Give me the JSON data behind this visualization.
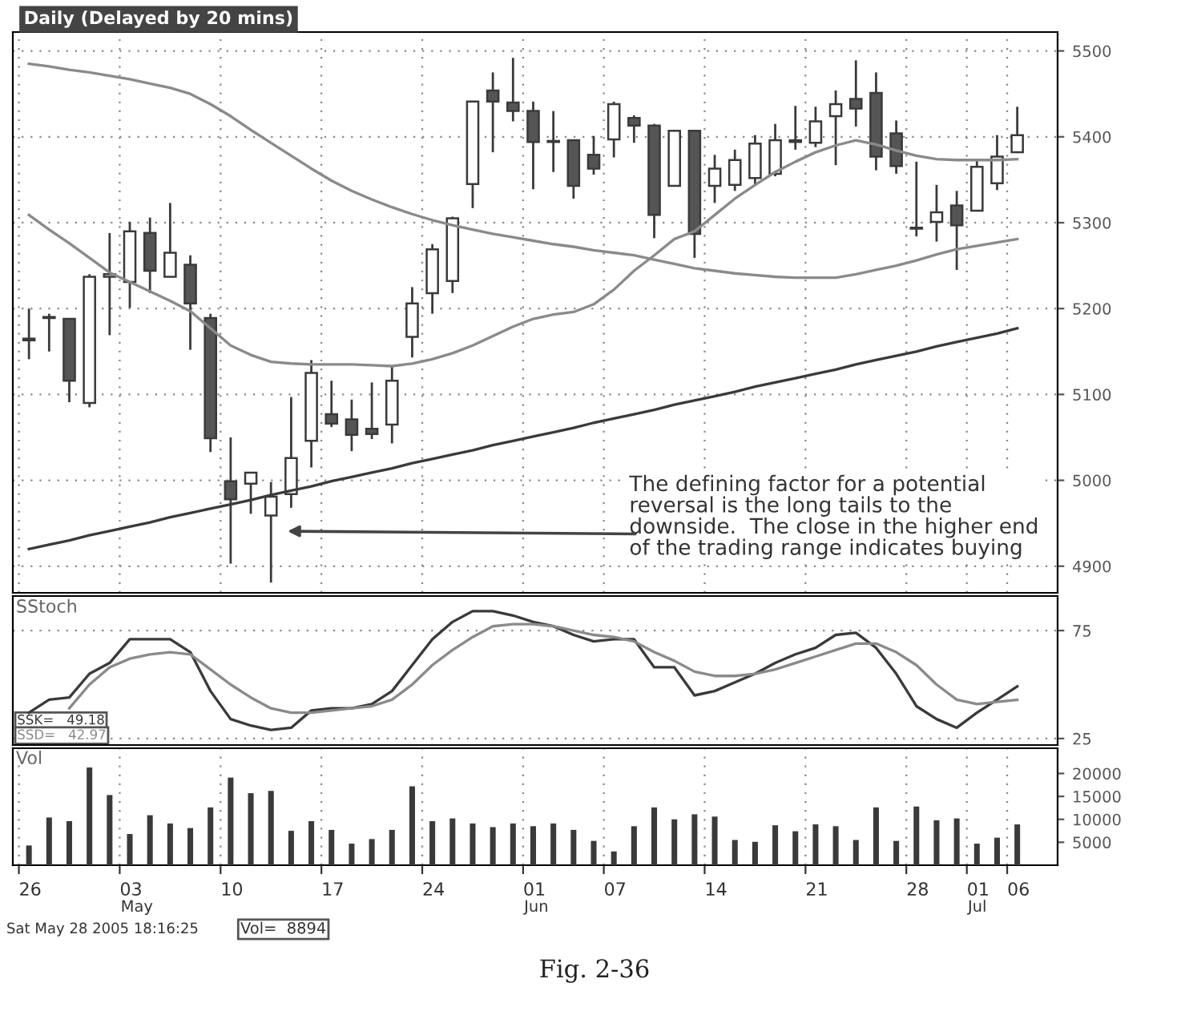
{
  "chart_data": [
    {
      "type": "candlestick",
      "title": "Daily (Delayed by 20 mins)",
      "categories": [
        "26",
        null,
        null,
        null,
        null,
        "03",
        null,
        null,
        null,
        null,
        "10",
        null,
        null,
        null,
        null,
        "17",
        null,
        null,
        null,
        null,
        "24",
        null,
        null,
        null,
        null,
        "01",
        null,
        null,
        null,
        "07",
        null,
        null,
        null,
        null,
        "14",
        null,
        null,
        null,
        null,
        "21",
        null,
        null,
        null,
        null,
        "28",
        null,
        null,
        "01",
        null,
        "06"
      ],
      "ohlc": [
        [
          5165,
          5200,
          5141,
          5163
        ],
        [
          5189,
          5194,
          5150,
          5190
        ],
        [
          5188,
          5188,
          5091,
          5116
        ],
        [
          5090,
          5240,
          5085,
          5237
        ],
        [
          5237,
          5288,
          5169,
          5240
        ],
        [
          5231,
          5301,
          5201,
          5290
        ],
        [
          5288,
          5306,
          5218,
          5244
        ],
        [
          5237,
          5323,
          5237,
          5265
        ],
        [
          5251,
          5262,
          5152,
          5206
        ],
        [
          5189,
          5194,
          5033,
          5049
        ],
        [
          4999,
          5050,
          4903,
          4978
        ],
        [
          4996,
          5009,
          4961,
          5009
        ],
        [
          4959,
          4998,
          4881,
          4981
        ],
        [
          4984,
          5097,
          4968,
          5026
        ],
        [
          5046,
          5140,
          5015,
          5125
        ],
        [
          5077,
          5116,
          5062,
          5066
        ],
        [
          5071,
          5094,
          5034,
          5053
        ],
        [
          5060,
          5114,
          5048,
          5054
        ],
        [
          5065,
          5132,
          5043,
          5116
        ],
        [
          5167,
          5225,
          5143,
          5206
        ],
        [
          5218,
          5275,
          5194,
          5269
        ],
        [
          5232,
          5307,
          5218,
          5305
        ],
        [
          5345,
          5441,
          5317,
          5441
        ],
        [
          5454,
          5475,
          5382,
          5441
        ],
        [
          5440,
          5492,
          5418,
          5430
        ],
        [
          5430,
          5441,
          5339,
          5394
        ],
        [
          5395,
          5430,
          5359,
          5394
        ],
        [
          5396,
          5396,
          5328,
          5343
        ],
        [
          5379,
          5401,
          5356,
          5363
        ],
        [
          5397,
          5441,
          5376,
          5438
        ],
        [
          5422,
          5425,
          5393,
          5413
        ],
        [
          5413,
          5415,
          5282,
          5309
        ],
        [
          5343,
          5407,
          5343,
          5407
        ],
        [
          5407,
          5407,
          5259,
          5287
        ],
        [
          5343,
          5379,
          5323,
          5363
        ],
        [
          5344,
          5385,
          5337,
          5373
        ],
        [
          5352,
          5402,
          5343,
          5392
        ],
        [
          5357,
          5415,
          5354,
          5396
        ],
        [
          5394,
          5436,
          5385,
          5396
        ],
        [
          5393,
          5435,
          5388,
          5418
        ],
        [
          5424,
          5454,
          5367,
          5438
        ],
        [
          5444,
          5489,
          5412,
          5433
        ],
        [
          5451,
          5475,
          5361,
          5377
        ],
        [
          5404,
          5419,
          5357,
          5366
        ],
        [
          5294,
          5371,
          5284,
          5293
        ],
        [
          5301,
          5344,
          5278,
          5312
        ],
        [
          5320,
          5337,
          5245,
          5297
        ],
        [
          5314,
          5374,
          5314,
          5365
        ],
        [
          5346,
          5402,
          5338,
          5377
        ],
        [
          5382,
          5435,
          5381,
          5402
        ]
      ],
      "series": [
        {
          "type": "line",
          "color": "#8a8a8a",
          "values": [
            5485,
            5482,
            5478,
            5475,
            5471,
            5467,
            5462,
            5457,
            5450,
            5438,
            5424,
            5408,
            5393,
            5378,
            5363,
            5349,
            5337,
            5327,
            5318,
            5310,
            5303,
            5297,
            5292,
            5287,
            5283,
            5279,
            5275,
            5272,
            5268,
            5265,
            5262,
            5257,
            5252,
            5247,
            5244,
            5241,
            5239,
            5237,
            5236,
            5236,
            5236,
            5240,
            5245,
            5250,
            5256,
            5263,
            5269,
            5273,
            5277,
            5281
          ]
        },
        {
          "type": "line",
          "color": "#8a8a8a",
          "values": [
            5309,
            5292,
            5276,
            5259,
            5242,
            5231,
            5220,
            5209,
            5197,
            5177,
            5157,
            5146,
            5138,
            5136,
            5135,
            5135,
            5135,
            5134,
            5133,
            5136,
            5141,
            5148,
            5157,
            5168,
            5179,
            5188,
            5193,
            5196,
            5205,
            5222,
            5244,
            5262,
            5281,
            5290,
            5309,
            5328,
            5344,
            5359,
            5371,
            5382,
            5390,
            5396,
            5391,
            5384,
            5378,
            5374,
            5373,
            5373,
            5373,
            5374
          ]
        },
        {
          "type": "line",
          "color": "#3a3a3a",
          "values": [
            4920,
            4925,
            4930,
            4936,
            4941,
            4946,
            4951,
            4957,
            4962,
            4967,
            4972,
            4977,
            4983,
            4988,
            4993,
            4999,
            5004,
            5009,
            5014,
            5020,
            5025,
            5030,
            5035,
            5041,
            5046,
            5051,
            5056,
            5061,
            5067,
            5072,
            5077,
            5082,
            5088,
            5093,
            5098,
            5103,
            5109,
            5114,
            5119,
            5124,
            5129,
            5135,
            5140,
            5145,
            5150,
            5156,
            5161,
            5166,
            5171,
            5177
          ]
        }
      ],
      "ylim": [
        4869,
        5522
      ],
      "yticks": [
        4900,
        5000,
        5100,
        5200,
        5300,
        5400,
        5500
      ],
      "grid": true,
      "tick_labels": "y",
      "annotations": [
        "The defining factor for a potential reversal is the long tails to the downside.  The close in the higher end of the trading range indicates buying"
      ]
    },
    {
      "type": "line",
      "title": "SStoch",
      "categories": [
        "26",
        null,
        null,
        null,
        null,
        "03",
        null,
        null,
        null,
        null,
        "10",
        null,
        null,
        null,
        null,
        "17",
        null,
        null,
        null,
        null,
        "24",
        null,
        null,
        null,
        null,
        "01",
        null,
        null,
        null,
        "07",
        null,
        null,
        null,
        null,
        "14",
        null,
        null,
        null,
        null,
        "21",
        null,
        null,
        null,
        null,
        "28",
        null,
        null,
        "01",
        null,
        "06"
      ],
      "series": [
        {
          "name": "SSK=",
          "color": "#3a3a3a",
          "values": [
            37,
            43,
            44,
            55,
            60,
            71,
            71,
            71,
            65,
            47,
            34,
            31,
            29,
            30,
            38,
            39,
            39,
            41,
            47,
            59,
            71,
            79,
            84,
            84,
            82,
            79,
            77,
            73,
            70,
            71,
            71,
            58,
            58,
            45,
            47,
            51,
            55,
            60,
            64,
            67,
            73,
            74,
            67,
            55,
            40,
            34,
            30,
            37,
            43,
            49.18
          ]
        },
        {
          "name": "SSD=",
          "color": "#8a8a8a",
          "values": [
            null,
            null,
            39,
            50,
            58,
            62,
            64,
            65,
            64,
            57,
            50,
            44,
            39,
            37,
            37,
            38,
            39,
            40,
            43,
            50,
            59,
            66,
            72,
            77,
            78,
            78,
            77,
            75,
            73,
            72,
            70,
            65,
            61,
            56,
            54,
            54,
            55,
            57,
            60,
            63,
            66,
            69,
            69,
            65,
            59,
            50,
            43,
            41,
            42,
            42.97
          ]
        }
      ],
      "value_labels": [
        "49.18",
        "42.97"
      ],
      "ylim": [
        22,
        91
      ],
      "yticks": [
        25,
        75
      ],
      "grid": "y",
      "tick_labels": "y"
    },
    {
      "type": "bar",
      "title": "Vol",
      "categories": [
        "26",
        null,
        null,
        null,
        null,
        "03",
        null,
        null,
        null,
        null,
        "10",
        null,
        null,
        null,
        null,
        "17",
        null,
        null,
        null,
        null,
        "24",
        null,
        null,
        null,
        null,
        "01",
        null,
        null,
        null,
        "07",
        null,
        null,
        null,
        null,
        "14",
        null,
        null,
        null,
        null,
        "21",
        null,
        null,
        null,
        null,
        "28",
        null,
        null,
        "01",
        null,
        "06"
      ],
      "values": [
        4300,
        10400,
        9600,
        21300,
        15300,
        6800,
        10900,
        9100,
        8100,
        12600,
        19100,
        15700,
        16200,
        7500,
        9600,
        7700,
        4700,
        5700,
        7700,
        17200,
        9600,
        10200,
        9100,
        8300,
        9100,
        8500,
        9100,
        7700,
        5300,
        3000,
        8500,
        12600,
        10000,
        11100,
        10600,
        5500,
        5100,
        8700,
        7400,
        8900,
        8500,
        5500,
        12600,
        5300,
        12800,
        9800,
        10200,
        4700,
        6000,
        8894
      ],
      "color": "#3a3a3a",
      "ylim": [
        0,
        25500
      ],
      "yticks": [
        5000,
        10000,
        15000,
        20000
      ],
      "grid": "x",
      "annotations": [
        "Vol=  8894",
        "May",
        "Jun",
        "Jul",
        "Sat May 28 2005 18:16:25",
        "Fig. 2-36"
      ]
    }
  ]
}
